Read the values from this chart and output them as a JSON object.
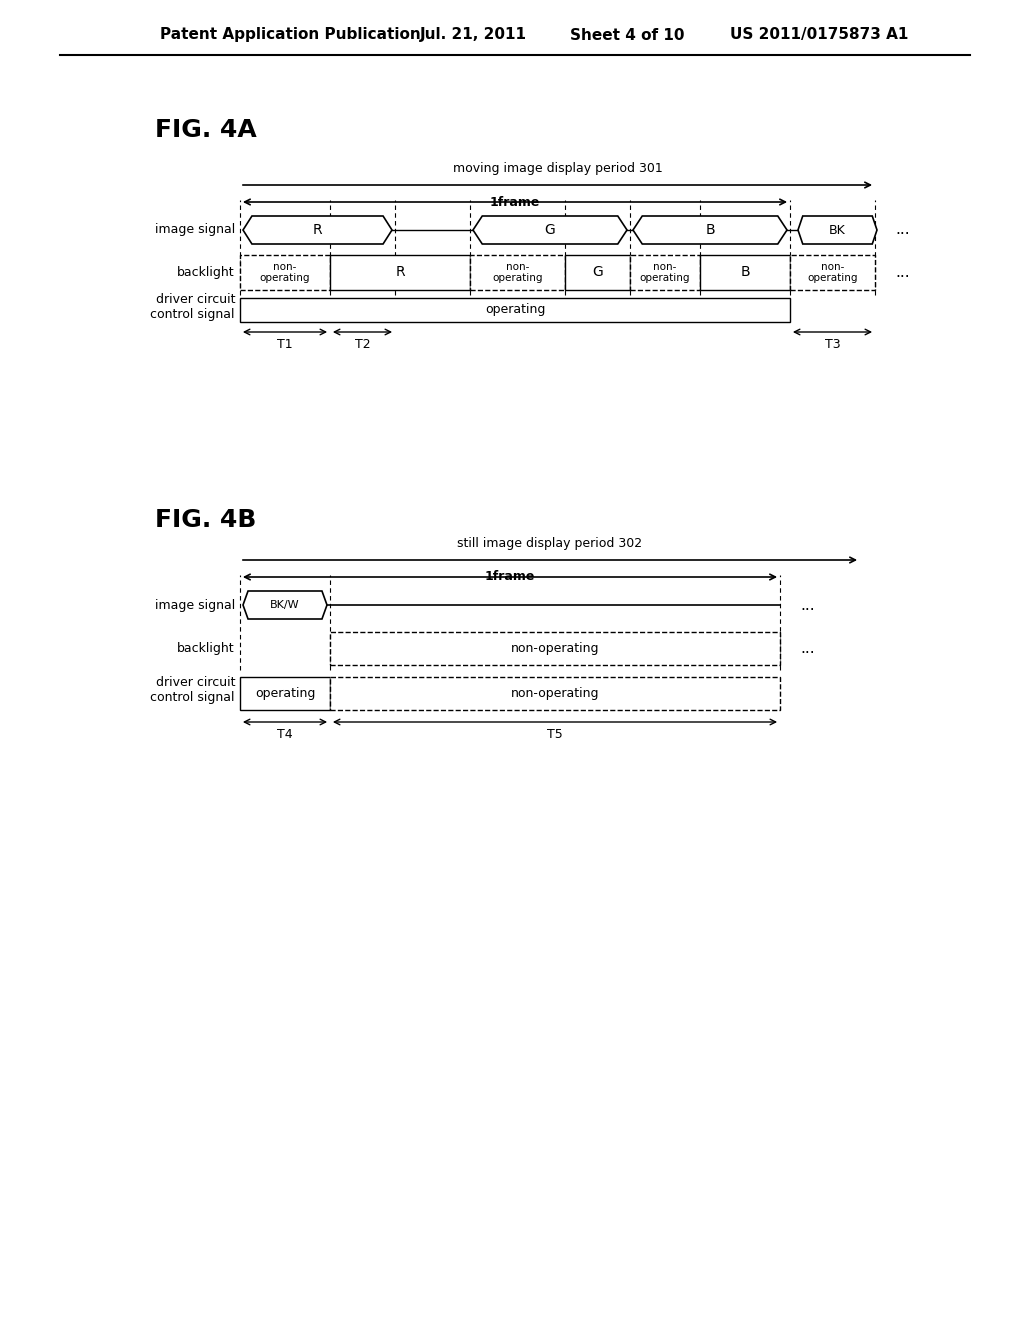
{
  "title_header": "Patent Application Publication",
  "header_date": "Jul. 21, 2011",
  "header_sheet": "Sheet 4 of 10",
  "header_patent": "US 2011/0175873 A1",
  "fig4a_label": "FIG. 4A",
  "fig4b_label": "FIG. 4B",
  "moving_period_label": "moving image display period 301",
  "still_period_label": "still image display period 302",
  "frame_label": "1frame",
  "image_signal_label": "image signal",
  "backlight_label": "backlight",
  "driver_label": "driver circuit\ncontrol signal",
  "operating_label": "operating",
  "non_operating_label": "non-\noperating",
  "non_operating_single": "non-operating",
  "bg_color": "#ffffff",
  "fg_color": "#000000"
}
